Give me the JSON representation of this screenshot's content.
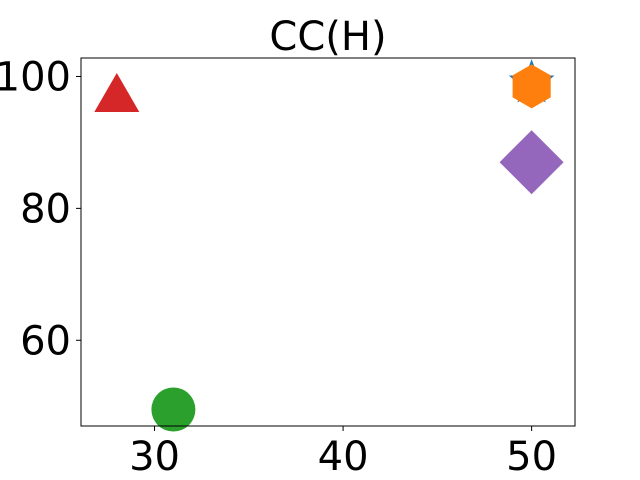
{
  "chart_data": {
    "type": "scatter",
    "title": "CC(H)",
    "xlabel": "",
    "ylabel": "",
    "xlim": [
      26.1,
      52.3
    ],
    "ylim": [
      47.0,
      102.8
    ],
    "xticks": [
      30,
      40,
      50
    ],
    "yticks": [
      60,
      80,
      100
    ],
    "grid": false,
    "points": [
      {
        "x": 50,
        "y": 99.0,
        "marker": "star",
        "color": "#1f77b4"
      },
      {
        "x": 50,
        "y": 98.5,
        "marker": "hexagon",
        "color": "#ff7f0e"
      },
      {
        "x": 31,
        "y": 49.5,
        "marker": "circle",
        "color": "#2ca02c"
      },
      {
        "x": 28,
        "y": 97.5,
        "marker": "triangle",
        "color": "#d62728"
      },
      {
        "x": 50,
        "y": 87.0,
        "marker": "diamond",
        "color": "#9467bd"
      }
    ]
  }
}
